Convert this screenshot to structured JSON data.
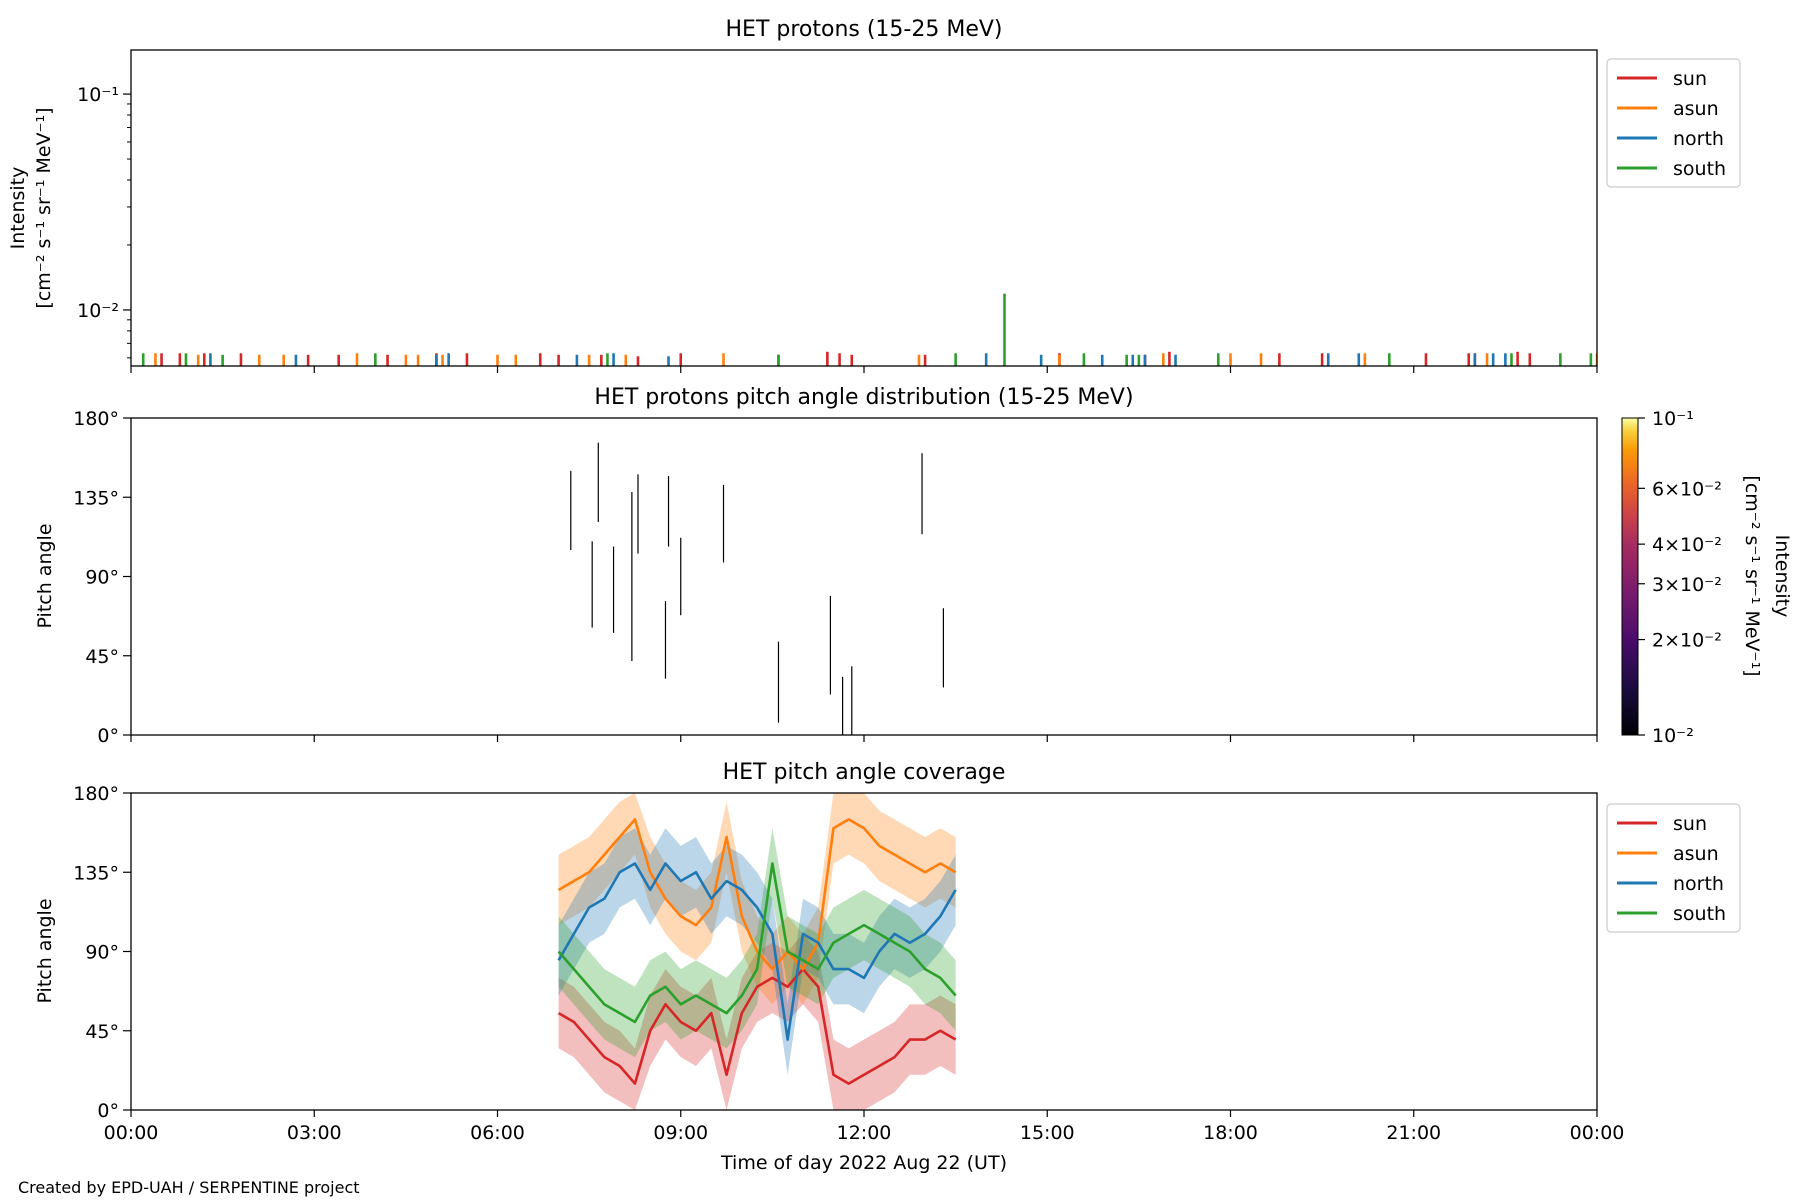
{
  "footer": {
    "credit": "Created by EPD-UAH / SERPENTINE project"
  },
  "colors": {
    "sun": "#d62728",
    "asun": "#ff7f0e",
    "north": "#1f77b4",
    "south": "#2ca02c"
  },
  "chart_data": [
    {
      "type": "bar",
      "title": "HET protons (15-25 MeV)",
      "ylabel_line1": "Intensity",
      "ylabel_line2": "[cm⁻² s⁻¹ sr⁻¹ MeV⁻¹]",
      "yscale": "log",
      "ylim": [
        0.0055,
        0.16
      ],
      "yticks": [
        {
          "value": 0.1,
          "label": "10⁻¹"
        },
        {
          "value": 0.01,
          "label": "10⁻²"
        }
      ],
      "xlim_hours": [
        0,
        24
      ],
      "legend": {
        "placement": "upper right",
        "entries": [
          "sun",
          "asun",
          "north",
          "south"
        ]
      },
      "baseline": 0.0055,
      "series": [
        {
          "name": "sun",
          "color": "#d62728",
          "points": [
            [
              0.5,
              0.0063
            ],
            [
              0.8,
              0.0063
            ],
            [
              1.2,
              0.0063
            ],
            [
              1.8,
              0.0063
            ],
            [
              2.9,
              0.0062
            ],
            [
              3.4,
              0.0062
            ],
            [
              4.2,
              0.0062
            ],
            [
              5.0,
              0.0063
            ],
            [
              5.5,
              0.0063
            ],
            [
              6.7,
              0.0063
            ],
            [
              7.0,
              0.0062
            ],
            [
              7.7,
              0.0062
            ],
            [
              8.3,
              0.0061
            ],
            [
              9.0,
              0.0063
            ],
            [
              10.6,
              0.0062
            ],
            [
              11.4,
              0.0064
            ],
            [
              11.6,
              0.0063
            ],
            [
              11.8,
              0.0062
            ],
            [
              13.0,
              0.0062
            ],
            [
              15.2,
              0.0063
            ],
            [
              16.6,
              0.0062
            ],
            [
              17.0,
              0.0064
            ],
            [
              18.8,
              0.0063
            ],
            [
              19.5,
              0.0063
            ],
            [
              21.2,
              0.0063
            ],
            [
              21.9,
              0.0063
            ],
            [
              22.0,
              0.0063
            ],
            [
              22.7,
              0.0064
            ],
            [
              22.9,
              0.0063
            ]
          ]
        },
        {
          "name": "asun",
          "color": "#ff7f0e",
          "points": [
            [
              0.4,
              0.0063
            ],
            [
              1.1,
              0.0062
            ],
            [
              2.1,
              0.0062
            ],
            [
              2.5,
              0.0062
            ],
            [
              3.7,
              0.0063
            ],
            [
              4.5,
              0.0062
            ],
            [
              4.7,
              0.0062
            ],
            [
              5.1,
              0.0062
            ],
            [
              6.0,
              0.0062
            ],
            [
              6.3,
              0.0062
            ],
            [
              7.5,
              0.0062
            ],
            [
              8.1,
              0.0062
            ],
            [
              9.7,
              0.0063
            ],
            [
              12.9,
              0.0062
            ],
            [
              15.2,
              0.0062
            ],
            [
              16.9,
              0.0063
            ],
            [
              18.0,
              0.0063
            ],
            [
              18.5,
              0.0063
            ],
            [
              20.2,
              0.0063
            ],
            [
              22.2,
              0.0063
            ],
            [
              24.0,
              0.0063
            ]
          ]
        },
        {
          "name": "north",
          "color": "#1f77b4",
          "points": [
            [
              1.3,
              0.0063
            ],
            [
              2.7,
              0.0062
            ],
            [
              5.0,
              0.0062
            ],
            [
              5.2,
              0.0063
            ],
            [
              7.3,
              0.0062
            ],
            [
              7.9,
              0.0063
            ],
            [
              8.8,
              0.0061
            ],
            [
              14.0,
              0.0063
            ],
            [
              14.9,
              0.0062
            ],
            [
              15.9,
              0.0062
            ],
            [
              16.4,
              0.0062
            ],
            [
              16.6,
              0.0062
            ],
            [
              17.1,
              0.0062
            ],
            [
              19.6,
              0.0063
            ],
            [
              20.1,
              0.0063
            ],
            [
              22.0,
              0.0063
            ],
            [
              22.3,
              0.0063
            ],
            [
              22.5,
              0.0063
            ]
          ]
        },
        {
          "name": "south",
          "color": "#2ca02c",
          "points": [
            [
              0.2,
              0.0063
            ],
            [
              0.9,
              0.0063
            ],
            [
              1.5,
              0.0062
            ],
            [
              4.0,
              0.0063
            ],
            [
              7.8,
              0.0063
            ],
            [
              10.6,
              0.0062
            ],
            [
              13.5,
              0.0063
            ],
            [
              14.3,
              0.0119
            ],
            [
              15.6,
              0.0063
            ],
            [
              16.3,
              0.0062
            ],
            [
              16.5,
              0.0062
            ],
            [
              17.8,
              0.0063
            ],
            [
              20.6,
              0.0063
            ],
            [
              22.6,
              0.0063
            ],
            [
              23.4,
              0.0063
            ],
            [
              23.9,
              0.0063
            ]
          ]
        }
      ]
    },
    {
      "type": "heatmap",
      "title": "HET protons pitch angle distribution (15-25 MeV)",
      "ylabel": "Pitch angle",
      "ylim_deg": [
        0,
        180
      ],
      "yticks": [
        {
          "value": 180,
          "label": "180°"
        },
        {
          "value": 135,
          "label": "135°"
        },
        {
          "value": 90,
          "label": "90°"
        },
        {
          "value": 45,
          "label": "45°"
        },
        {
          "value": 0,
          "label": "0°"
        }
      ],
      "xlim_hours": [
        0,
        24
      ],
      "colorbar": {
        "label_line1": "Intensity",
        "label_line2": "[cm⁻² s⁻¹ sr⁻¹ MeV⁻¹]",
        "scale": "log",
        "range": [
          0.01,
          0.1
        ],
        "colormap": "inferno",
        "ticks": [
          {
            "value": 0.1,
            "label": "10⁻¹"
          },
          {
            "value": 0.06,
            "label": "6×10⁻²"
          },
          {
            "value": 0.04,
            "label": "4×10⁻²"
          },
          {
            "value": 0.03,
            "label": "3×10⁻²"
          },
          {
            "value": 0.02,
            "label": "2×10⁻²"
          },
          {
            "value": 0.01,
            "label": "10⁻²"
          }
        ]
      },
      "segments": [
        {
          "t": 7.2,
          "pa": [
            105,
            150
          ]
        },
        {
          "t": 7.55,
          "pa": [
            61,
            110
          ]
        },
        {
          "t": 7.65,
          "pa": [
            121,
            166
          ]
        },
        {
          "t": 7.9,
          "pa": [
            58,
            107
          ]
        },
        {
          "t": 8.2,
          "pa": [
            42,
            138
          ]
        },
        {
          "t": 8.3,
          "pa": [
            103,
            148
          ]
        },
        {
          "t": 8.75,
          "pa": [
            32,
            76
          ]
        },
        {
          "t": 8.8,
          "pa": [
            107,
            147
          ]
        },
        {
          "t": 9.0,
          "pa": [
            68,
            112
          ]
        },
        {
          "t": 9.7,
          "pa": [
            98,
            142
          ]
        },
        {
          "t": 10.6,
          "pa": [
            7,
            53
          ]
        },
        {
          "t": 11.45,
          "pa": [
            23,
            79
          ]
        },
        {
          "t": 11.65,
          "pa": [
            0,
            33
          ]
        },
        {
          "t": 11.8,
          "pa": [
            0,
            39
          ]
        },
        {
          "t": 12.95,
          "pa": [
            114,
            160
          ]
        },
        {
          "t": 13.3,
          "pa": [
            27,
            72
          ]
        }
      ]
    },
    {
      "type": "line",
      "title": "HET pitch angle coverage",
      "ylabel": "Pitch angle",
      "xlabel": "Time of day 2022 Aug 22 (UT)",
      "ylim_deg": [
        0,
        180
      ],
      "yticks": [
        {
          "value": 180,
          "label": "180°"
        },
        {
          "value": 135,
          "label": "135°"
        },
        {
          "value": 90,
          "label": "90°"
        },
        {
          "value": 45,
          "label": "45°"
        },
        {
          "value": 0,
          "label": "0°"
        }
      ],
      "xlim_hours": [
        0,
        24
      ],
      "xticks": [
        {
          "value": 0,
          "label": "00:00"
        },
        {
          "value": 3,
          "label": "03:00"
        },
        {
          "value": 6,
          "label": "06:00"
        },
        {
          "value": 9,
          "label": "09:00"
        },
        {
          "value": 12,
          "label": "12:00"
        },
        {
          "value": 15,
          "label": "15:00"
        },
        {
          "value": 18,
          "label": "18:00"
        },
        {
          "value": 21,
          "label": "21:00"
        },
        {
          "value": 24,
          "label": "00:00"
        }
      ],
      "legend": {
        "placement": "upper right",
        "entries": [
          "sun",
          "asun",
          "north",
          "south"
        ]
      },
      "band_halfwidth_deg": 20,
      "series": [
        {
          "name": "sun",
          "color": "#d62728",
          "x": [
            7.0,
            7.25,
            7.5,
            7.75,
            8.0,
            8.25,
            8.5,
            8.75,
            9.0,
            9.25,
            9.5,
            9.75,
            10.0,
            10.25,
            10.5,
            10.75,
            11.0,
            11.25,
            11.5,
            11.75,
            12.0,
            12.25,
            12.5,
            12.75,
            13.0,
            13.25,
            13.5
          ],
          "y": [
            55,
            50,
            40,
            30,
            25,
            15,
            45,
            60,
            50,
            45,
            55,
            20,
            55,
            70,
            75,
            70,
            80,
            70,
            20,
            15,
            20,
            25,
            30,
            40,
            40,
            45,
            40
          ]
        },
        {
          "name": "asun",
          "color": "#ff7f0e",
          "x": [
            7.0,
            7.25,
            7.5,
            7.75,
            8.0,
            8.25,
            8.5,
            8.75,
            9.0,
            9.25,
            9.5,
            9.75,
            10.0,
            10.25,
            10.5,
            10.75,
            11.0,
            11.25,
            11.5,
            11.75,
            12.0,
            12.25,
            12.5,
            12.75,
            13.0,
            13.25,
            13.5
          ],
          "y": [
            125,
            130,
            135,
            145,
            155,
            165,
            135,
            120,
            110,
            105,
            115,
            155,
            110,
            90,
            80,
            90,
            80,
            95,
            160,
            165,
            160,
            150,
            145,
            140,
            135,
            140,
            135
          ]
        },
        {
          "name": "north",
          "color": "#1f77b4",
          "x": [
            7.0,
            7.25,
            7.5,
            7.75,
            8.0,
            8.25,
            8.5,
            8.75,
            9.0,
            9.25,
            9.5,
            9.75,
            10.0,
            10.25,
            10.5,
            10.75,
            11.0,
            11.25,
            11.5,
            11.75,
            12.0,
            12.25,
            12.5,
            12.75,
            13.0,
            13.25,
            13.5
          ],
          "y": [
            85,
            100,
            115,
            120,
            135,
            140,
            125,
            140,
            130,
            135,
            120,
            130,
            125,
            115,
            100,
            40,
            100,
            95,
            80,
            80,
            75,
            90,
            100,
            95,
            100,
            110,
            125
          ]
        },
        {
          "name": "south",
          "color": "#2ca02c",
          "x": [
            7.0,
            7.25,
            7.5,
            7.75,
            8.0,
            8.25,
            8.5,
            8.75,
            9.0,
            9.25,
            9.5,
            9.75,
            10.0,
            10.25,
            10.5,
            10.75,
            11.0,
            11.25,
            11.5,
            11.75,
            12.0,
            12.25,
            12.5,
            12.75,
            13.0,
            13.25,
            13.5
          ],
          "y": [
            90,
            80,
            70,
            60,
            55,
            50,
            65,
            70,
            60,
            65,
            60,
            55,
            65,
            80,
            140,
            90,
            85,
            80,
            95,
            100,
            105,
            100,
            95,
            90,
            80,
            75,
            65
          ]
        }
      ]
    }
  ]
}
